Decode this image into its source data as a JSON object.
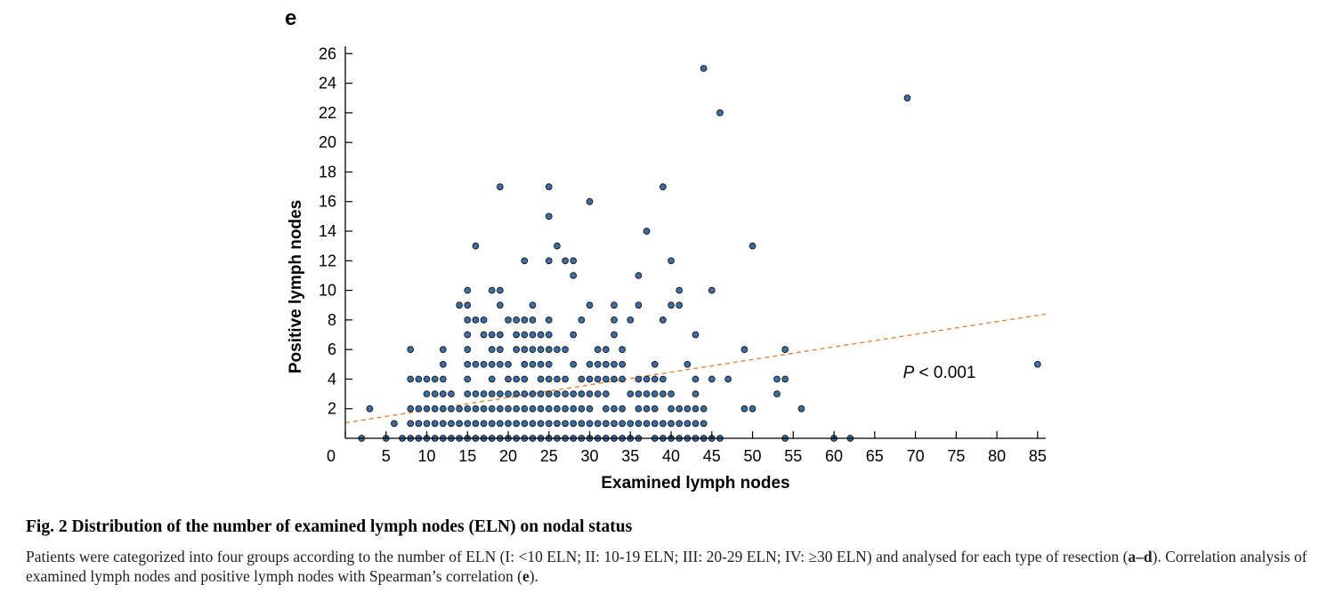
{
  "figure": {
    "panel_label": "e",
    "caption_label": "Fig. 2",
    "caption_title": "Distribution of the number of examined lymph nodes (ELN) on nodal status",
    "caption_body_1": "Patients were categorized into four groups according to the number of ELN (I: <10 ELN; II: 10-19 ELN; III: 20-29 ELN; IV: ≥30 ELN) and analysed for each type of resection (",
    "caption_body_2": "a–d",
    "caption_body_3": "). Correlation analysis of examined lymph nodes and positive lymph nodes with Spearman’s correlation (",
    "caption_body_4": "e",
    "caption_body_5": ")."
  },
  "chart_data": {
    "type": "scatter",
    "title": "",
    "xlabel": "Examined lymph nodes",
    "ylabel": "Positive lymph nodes",
    "xlim": [
      0,
      86
    ],
    "ylim": [
      0,
      26.5
    ],
    "x_ticks": [
      0,
      5,
      10,
      15,
      20,
      25,
      30,
      35,
      40,
      45,
      50,
      55,
      60,
      65,
      70,
      75,
      80,
      85
    ],
    "y_ticks": [
      2,
      4,
      6,
      8,
      10,
      12,
      14,
      16,
      18,
      20,
      22,
      24,
      26
    ],
    "annotation": {
      "italic": "P",
      "rest": " < 0.001",
      "x": 70,
      "y": 4.5
    },
    "marker_color": "#3a6fa8",
    "trend_color": "#e8822e",
    "trend_line": {
      "x0": 0,
      "y0": 1.05,
      "x1": 86,
      "y1": 8.4
    },
    "grid": false,
    "points": [
      [
        2,
        0
      ],
      [
        3,
        2
      ],
      [
        5,
        0
      ],
      [
        6,
        1
      ],
      [
        7,
        0
      ],
      [
        8,
        0
      ],
      [
        8,
        1
      ],
      [
        8,
        2
      ],
      [
        8,
        4
      ],
      [
        8,
        6
      ],
      [
        9,
        0
      ],
      [
        9,
        1
      ],
      [
        9,
        2
      ],
      [
        9,
        4
      ],
      [
        10,
        0
      ],
      [
        10,
        1
      ],
      [
        10,
        2
      ],
      [
        10,
        3
      ],
      [
        10,
        4
      ],
      [
        11,
        0
      ],
      [
        11,
        1
      ],
      [
        11,
        2
      ],
      [
        11,
        3
      ],
      [
        11,
        4
      ],
      [
        12,
        0
      ],
      [
        12,
        1
      ],
      [
        12,
        2
      ],
      [
        12,
        3
      ],
      [
        12,
        4
      ],
      [
        12,
        5
      ],
      [
        12,
        6
      ],
      [
        13,
        0
      ],
      [
        13,
        1
      ],
      [
        13,
        2
      ],
      [
        13,
        3
      ],
      [
        14,
        0
      ],
      [
        14,
        1
      ],
      [
        14,
        2
      ],
      [
        14,
        9
      ],
      [
        15,
        0
      ],
      [
        15,
        1
      ],
      [
        15,
        2
      ],
      [
        15,
        3
      ],
      [
        15,
        4
      ],
      [
        15,
        5
      ],
      [
        15,
        6
      ],
      [
        15,
        7
      ],
      [
        15,
        8
      ],
      [
        15,
        9
      ],
      [
        15,
        10
      ],
      [
        16,
        0
      ],
      [
        16,
        1
      ],
      [
        16,
        2
      ],
      [
        16,
        3
      ],
      [
        16,
        5
      ],
      [
        16,
        8
      ],
      [
        16,
        13
      ],
      [
        17,
        0
      ],
      [
        17,
        1
      ],
      [
        17,
        2
      ],
      [
        17,
        3
      ],
      [
        17,
        5
      ],
      [
        17,
        7
      ],
      [
        17,
        8
      ],
      [
        18,
        0
      ],
      [
        18,
        1
      ],
      [
        18,
        2
      ],
      [
        18,
        3
      ],
      [
        18,
        4
      ],
      [
        18,
        5
      ],
      [
        18,
        6
      ],
      [
        18,
        7
      ],
      [
        18,
        10
      ],
      [
        19,
        0
      ],
      [
        19,
        1
      ],
      [
        19,
        2
      ],
      [
        19,
        3
      ],
      [
        19,
        5
      ],
      [
        19,
        6
      ],
      [
        19,
        7
      ],
      [
        19,
        9
      ],
      [
        19,
        10
      ],
      [
        19,
        17
      ],
      [
        20,
        0
      ],
      [
        20,
        1
      ],
      [
        20,
        2
      ],
      [
        20,
        3
      ],
      [
        20,
        4
      ],
      [
        20,
        5
      ],
      [
        20,
        8
      ],
      [
        21,
        0
      ],
      [
        21,
        1
      ],
      [
        21,
        2
      ],
      [
        21,
        3
      ],
      [
        21,
        4
      ],
      [
        21,
        6
      ],
      [
        21,
        7
      ],
      [
        21,
        8
      ],
      [
        22,
        0
      ],
      [
        22,
        1
      ],
      [
        22,
        2
      ],
      [
        22,
        3
      ],
      [
        22,
        4
      ],
      [
        22,
        5
      ],
      [
        22,
        6
      ],
      [
        22,
        7
      ],
      [
        22,
        8
      ],
      [
        22,
        12
      ],
      [
        23,
        0
      ],
      [
        23,
        1
      ],
      [
        23,
        2
      ],
      [
        23,
        3
      ],
      [
        23,
        5
      ],
      [
        23,
        6
      ],
      [
        23,
        7
      ],
      [
        23,
        8
      ],
      [
        23,
        9
      ],
      [
        24,
        0
      ],
      [
        24,
        1
      ],
      [
        24,
        2
      ],
      [
        24,
        3
      ],
      [
        24,
        4
      ],
      [
        24,
        5
      ],
      [
        24,
        6
      ],
      [
        24,
        7
      ],
      [
        25,
        0
      ],
      [
        25,
        1
      ],
      [
        25,
        2
      ],
      [
        25,
        3
      ],
      [
        25,
        4
      ],
      [
        25,
        5
      ],
      [
        25,
        6
      ],
      [
        25,
        7
      ],
      [
        25,
        8
      ],
      [
        25,
        12
      ],
      [
        25,
        15
      ],
      [
        25,
        17
      ],
      [
        26,
        0
      ],
      [
        26,
        1
      ],
      [
        26,
        2
      ],
      [
        26,
        3
      ],
      [
        26,
        4
      ],
      [
        26,
        6
      ],
      [
        26,
        13
      ],
      [
        27,
        0
      ],
      [
        27,
        1
      ],
      [
        27,
        2
      ],
      [
        27,
        3
      ],
      [
        27,
        4
      ],
      [
        27,
        6
      ],
      [
        27,
        12
      ],
      [
        28,
        0
      ],
      [
        28,
        1
      ],
      [
        28,
        2
      ],
      [
        28,
        3
      ],
      [
        28,
        5
      ],
      [
        28,
        7
      ],
      [
        28,
        11
      ],
      [
        28,
        12
      ],
      [
        29,
        0
      ],
      [
        29,
        1
      ],
      [
        29,
        2
      ],
      [
        29,
        3
      ],
      [
        29,
        4
      ],
      [
        29,
        8
      ],
      [
        30,
        0
      ],
      [
        30,
        1
      ],
      [
        30,
        2
      ],
      [
        30,
        3
      ],
      [
        30,
        4
      ],
      [
        30,
        5
      ],
      [
        30,
        9
      ],
      [
        30,
        16
      ],
      [
        31,
        0
      ],
      [
        31,
        1
      ],
      [
        31,
        3
      ],
      [
        31,
        4
      ],
      [
        31,
        5
      ],
      [
        31,
        6
      ],
      [
        32,
        0
      ],
      [
        32,
        1
      ],
      [
        32,
        2
      ],
      [
        32,
        3
      ],
      [
        32,
        4
      ],
      [
        32,
        5
      ],
      [
        32,
        6
      ],
      [
        33,
        0
      ],
      [
        33,
        1
      ],
      [
        33,
        2
      ],
      [
        33,
        4
      ],
      [
        33,
        5
      ],
      [
        33,
        7
      ],
      [
        33,
        8
      ],
      [
        33,
        9
      ],
      [
        34,
        0
      ],
      [
        34,
        1
      ],
      [
        34,
        2
      ],
      [
        34,
        4
      ],
      [
        34,
        5
      ],
      [
        34,
        6
      ],
      [
        35,
        0
      ],
      [
        35,
        1
      ],
      [
        35,
        3
      ],
      [
        35,
        8
      ],
      [
        36,
        0
      ],
      [
        36,
        1
      ],
      [
        36,
        2
      ],
      [
        36,
        3
      ],
      [
        36,
        4
      ],
      [
        36,
        9
      ],
      [
        36,
        11
      ],
      [
        37,
        1
      ],
      [
        37,
        2
      ],
      [
        37,
        3
      ],
      [
        37,
        4
      ],
      [
        37,
        14
      ],
      [
        38,
        0
      ],
      [
        38,
        1
      ],
      [
        38,
        2
      ],
      [
        38,
        3
      ],
      [
        38,
        4
      ],
      [
        38,
        5
      ],
      [
        39,
        0
      ],
      [
        39,
        1
      ],
      [
        39,
        3
      ],
      [
        39,
        4
      ],
      [
        39,
        8
      ],
      [
        39,
        17
      ],
      [
        40,
        0
      ],
      [
        40,
        1
      ],
      [
        40,
        2
      ],
      [
        40,
        3
      ],
      [
        40,
        9
      ],
      [
        40,
        12
      ],
      [
        41,
        0
      ],
      [
        41,
        1
      ],
      [
        41,
        2
      ],
      [
        41,
        9
      ],
      [
        41,
        10
      ],
      [
        42,
        0
      ],
      [
        42,
        1
      ],
      [
        42,
        2
      ],
      [
        42,
        5
      ],
      [
        43,
        0
      ],
      [
        43,
        1
      ],
      [
        43,
        2
      ],
      [
        43,
        3
      ],
      [
        43,
        4
      ],
      [
        43,
        7
      ],
      [
        44,
        0
      ],
      [
        44,
        1
      ],
      [
        44,
        2
      ],
      [
        44,
        25
      ],
      [
        45,
        0
      ],
      [
        45,
        4
      ],
      [
        45,
        10
      ],
      [
        46,
        0
      ],
      [
        46,
        22
      ],
      [
        47,
        4
      ],
      [
        49,
        2
      ],
      [
        49,
        6
      ],
      [
        50,
        2
      ],
      [
        50,
        13
      ],
      [
        53,
        3
      ],
      [
        53,
        4
      ],
      [
        54,
        0
      ],
      [
        54,
        4
      ],
      [
        54,
        6
      ],
      [
        56,
        2
      ],
      [
        60,
        0
      ],
      [
        62,
        0
      ],
      [
        69,
        23
      ],
      [
        85,
        5
      ]
    ]
  }
}
